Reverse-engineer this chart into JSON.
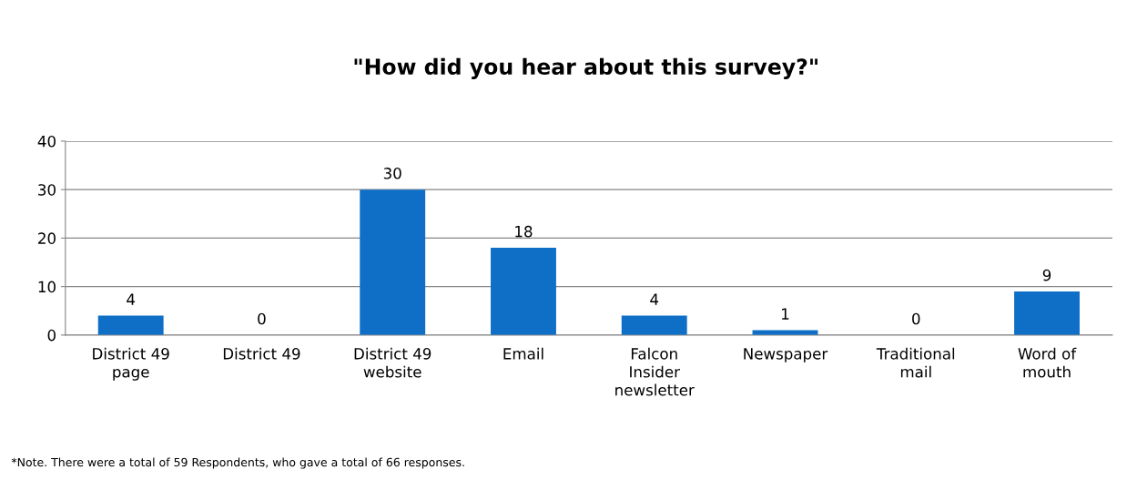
{
  "chart_data": {
    "type": "bar",
    "title": "\"How did you hear about this survey?\"",
    "categories": [
      "District 49\npage",
      "District 49",
      "District 49\nwebsite",
      "Email",
      "Falcon\nInsider\nnewsletter",
      "Newspaper",
      "Traditional\nmail",
      "Word of\nmouth"
    ],
    "values": [
      4,
      0,
      30,
      18,
      4,
      1,
      0,
      9
    ],
    "color": "#0f6fc6",
    "ylim": [
      0,
      40
    ],
    "yticks": [
      0,
      10,
      20,
      30,
      40
    ],
    "grid": "y",
    "data_labels": true,
    "annotations": [
      "*Note. There were a total of 59 Respondents, who gave a total of 66 responses."
    ]
  }
}
